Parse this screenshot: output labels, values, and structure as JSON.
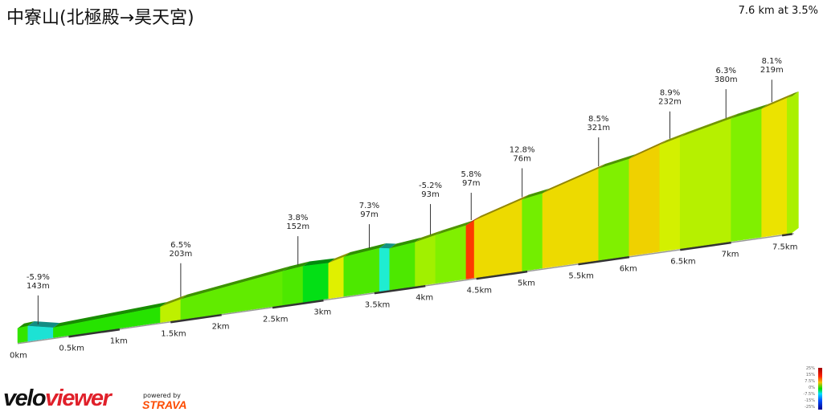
{
  "header": {
    "title": "中寮山(北極殿→昊天宮)",
    "summary": "7.6 km at 3.5%"
  },
  "chart_data": {
    "type": "area",
    "xlabel": "",
    "ylabel": "",
    "x_ticks": [
      "0km",
      "0.5km",
      "1km",
      "1.5km",
      "2km",
      "2.5km",
      "3km",
      "3.5km",
      "4km",
      "4.5km",
      "5km",
      "5.5km",
      "6km",
      "6.5km",
      "7km",
      "7.5km"
    ],
    "xlim": [
      0,
      7.6
    ],
    "segments": [
      {
        "from": 0,
        "to": 0.1,
        "grade": 2
      },
      {
        "from": 0.1,
        "to": 0.35,
        "grade": -5.9
      },
      {
        "from": 0.35,
        "to": 1.4,
        "grade": 1.5
      },
      {
        "from": 1.4,
        "to": 1.6,
        "grade": 6.5
      },
      {
        "from": 1.6,
        "to": 2.6,
        "grade": 3.8
      },
      {
        "from": 2.6,
        "to": 2.8,
        "grade": 3
      },
      {
        "from": 2.8,
        "to": 3.05,
        "grade": -0.5
      },
      {
        "from": 3.05,
        "to": 3.2,
        "grade": 7.3
      },
      {
        "from": 3.2,
        "to": 3.55,
        "grade": 3
      },
      {
        "from": 3.55,
        "to": 3.65,
        "grade": -5.2
      },
      {
        "from": 3.65,
        "to": 3.9,
        "grade": 3
      },
      {
        "from": 3.9,
        "to": 4.1,
        "grade": 5.8
      },
      {
        "from": 4.1,
        "to": 4.4,
        "grade": 5
      },
      {
        "from": 4.4,
        "to": 4.48,
        "grade": 12.8
      },
      {
        "from": 4.48,
        "to": 4.95,
        "grade": 8.5
      },
      {
        "from": 4.95,
        "to": 5.15,
        "grade": 4.5
      },
      {
        "from": 5.15,
        "to": 5.7,
        "grade": 8.5
      },
      {
        "from": 5.7,
        "to": 6.0,
        "grade": 5
      },
      {
        "from": 6.0,
        "to": 6.3,
        "grade": 8.9
      },
      {
        "from": 6.3,
        "to": 6.5,
        "grade": 7
      },
      {
        "from": 6.5,
        "to": 7.0,
        "grade": 6.3
      },
      {
        "from": 7.0,
        "to": 7.3,
        "grade": 5
      },
      {
        "from": 7.3,
        "to": 7.55,
        "grade": 8.1
      },
      {
        "from": 7.55,
        "to": 7.6,
        "grade": 6
      }
    ],
    "annotations": [
      {
        "km": 0.2,
        "grade": "-5.9%",
        "length": "143m"
      },
      {
        "km": 1.6,
        "grade": "6.5%",
        "length": "203m"
      },
      {
        "km": 2.75,
        "grade": "3.8%",
        "length": "152m"
      },
      {
        "km": 3.45,
        "grade": "7.3%",
        "length": "97m"
      },
      {
        "km": 4.05,
        "grade": "-5.2%",
        "length": "93m"
      },
      {
        "km": 4.45,
        "grade": "5.8%",
        "length": "97m"
      },
      {
        "km": 4.95,
        "grade": "12.8%",
        "length": "76m"
      },
      {
        "km": 5.7,
        "grade": "8.5%",
        "length": "321m"
      },
      {
        "km": 6.4,
        "grade": "8.9%",
        "length": "232m"
      },
      {
        "km": 6.95,
        "grade": "6.3%",
        "length": "380m"
      },
      {
        "km": 7.4,
        "grade": "8.1%",
        "length": "219m"
      }
    ]
  },
  "legend": {
    "labels": [
      "25%",
      "15%",
      "7.5%",
      "0%",
      "-7.5%",
      "-15%",
      "-25%"
    ]
  },
  "branding": {
    "logo_a": "velo",
    "logo_b": "viewer",
    "powered": "powered by",
    "strava": "STRAVA"
  }
}
